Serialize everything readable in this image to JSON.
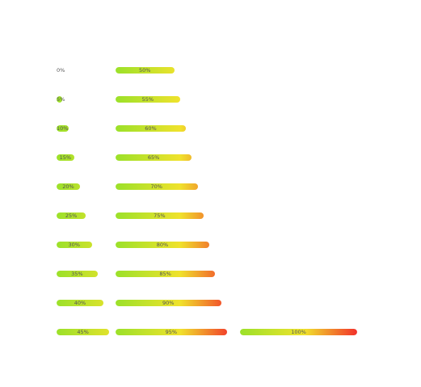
{
  "bars": [
    {
      "value": 0,
      "label": "0%"
    },
    {
      "value": 5,
      "label": "5%"
    },
    {
      "value": 10,
      "label": "10%"
    },
    {
      "value": 15,
      "label": "15%"
    },
    {
      "value": 20,
      "label": "20%"
    },
    {
      "value": 25,
      "label": "25%"
    },
    {
      "value": 30,
      "label": "30%"
    },
    {
      "value": 35,
      "label": "35%"
    },
    {
      "value": 40,
      "label": "40%"
    },
    {
      "value": 45,
      "label": "45%"
    },
    {
      "value": 50,
      "label": "50%"
    },
    {
      "value": 55,
      "label": "55%"
    },
    {
      "value": 60,
      "label": "60%"
    },
    {
      "value": 65,
      "label": "65%"
    },
    {
      "value": 70,
      "label": "70%"
    },
    {
      "value": 75,
      "label": "75%"
    },
    {
      "value": 80,
      "label": "80%"
    },
    {
      "value": 85,
      "label": "85%"
    },
    {
      "value": 90,
      "label": "90%"
    },
    {
      "value": 95,
      "label": "95%"
    },
    {
      "value": 100,
      "label": "100%"
    }
  ],
  "colors": {
    "start": "#9be12a",
    "mid": "#f0e22c",
    "end": "#f2302b",
    "label": "#555555"
  }
}
